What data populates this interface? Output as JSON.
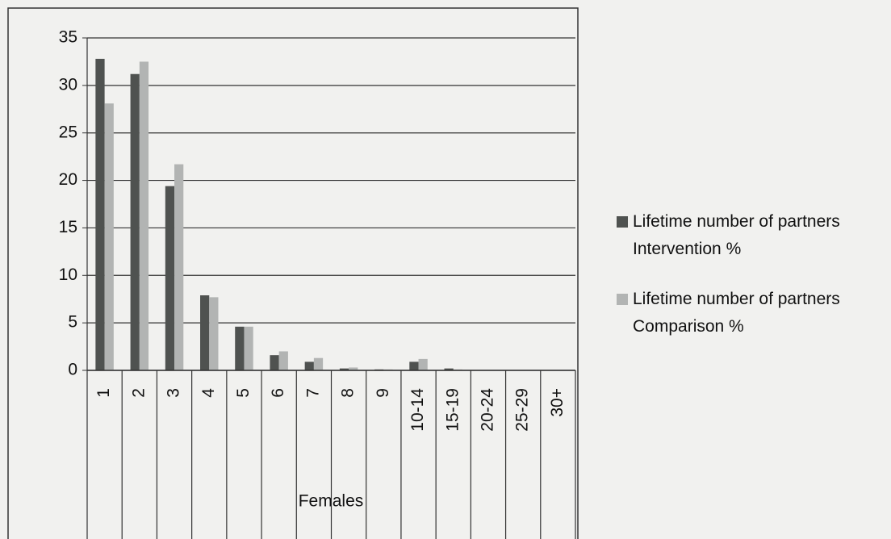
{
  "chart_data": {
    "type": "bar",
    "xlabel": "Females",
    "categories": [
      "1",
      "2",
      "3",
      "4",
      "5",
      "6",
      "7",
      "8",
      "9",
      "10-14",
      "15-19",
      "20-24",
      "25-29",
      "30+"
    ],
    "series": [
      {
        "name": "Lifetime number of partners Intervention %",
        "color": "#4f5250",
        "values": [
          32.8,
          31.2,
          19.4,
          7.9,
          4.6,
          1.6,
          0.9,
          0.2,
          0.1,
          0.9,
          0.2,
          0,
          0,
          0
        ]
      },
      {
        "name": "Lifetime number of partners Comparison %",
        "color": "#b2b4b3",
        "values": [
          28.1,
          32.5,
          21.7,
          7.7,
          4.6,
          2.0,
          1.3,
          0.3,
          0.1,
          1.2,
          0.1,
          0,
          0,
          0
        ]
      }
    ],
    "ylim": [
      0,
      35
    ],
    "yticks": [
      0,
      5,
      10,
      15,
      20,
      25,
      30,
      35
    ],
    "grid": true,
    "legend": "right"
  }
}
